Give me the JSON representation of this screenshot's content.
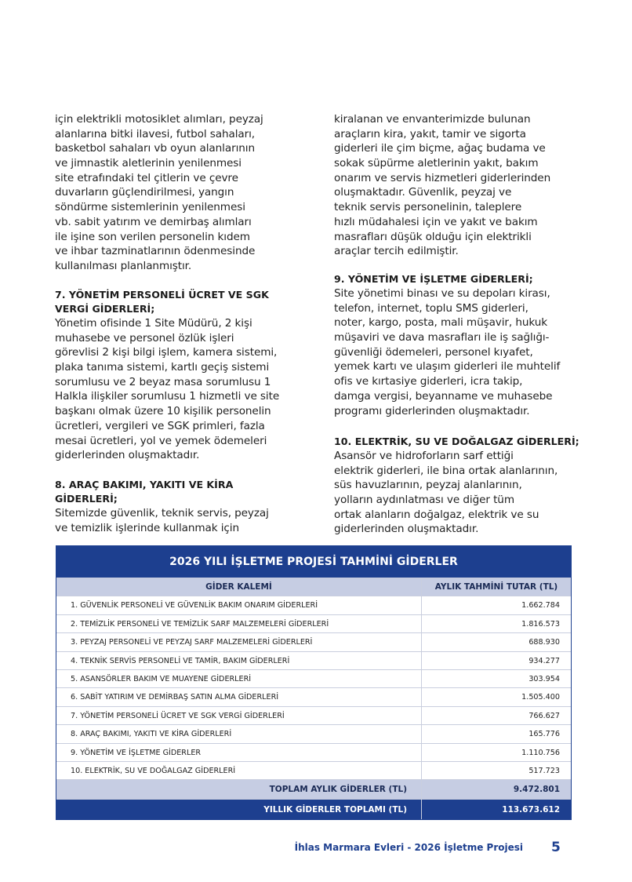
{
  "left": [
    {
      "lines": [
        "için elektrikli motosiklet alımları, peyzaj",
        "alanlarına bitki ilavesi, futbol sahaları,",
        "basketbol sahaları vb oyun alanlarının",
        "ve jimnastik aletlerinin yenilenmesi",
        "site etrafındaki tel çitlerin ve çevre",
        "duvarların güçlendirilmesi, yangın",
        "söndürme sistemlerinin yenilenmesi",
        "vb. sabit yatırım ve demirbaş alımları",
        "ile işine son verilen personelin kıdem",
        "ve ihbar tazminatlarının ödenmesinde",
        "kullanılması planlanmıştır."
      ]
    },
    {
      "heading": [
        "7. YÖNETİM PERSONELİ ÜCRET VE SGK",
        "VERGİ GİDERLERİ;"
      ],
      "lines": [
        "Yönetim ofisinde 1 Site Müdürü, 2 kişi",
        "muhasebe ve personel özlük işleri",
        "görevlisi 2 kişi bilgi işlem, kamera sistemi,",
        "plaka tanıma sistemi, kartlı geçiş sistemi",
        "sorumlusu ve 2 beyaz masa sorumlusu 1",
        "Halkla ilişkiler sorumlusu 1 hizmetli ve site",
        "başkanı olmak üzere 10 kişilik personelin",
        "ücretleri, vergileri ve SGK primleri, fazla",
        "mesai ücretleri, yol ve yemek ödemeleri",
        "giderlerinden oluşmaktadır."
      ]
    },
    {
      "heading": [
        "8. ARAÇ BAKIMI, YAKITI VE KİRA",
        "GİDERLERİ;"
      ],
      "lines": [
        "Sitemizde güvenlik, teknik servis, peyzaj",
        "ve temizlik işlerinde kullanmak için"
      ]
    }
  ],
  "right": [
    {
      "lines": [
        "kiralanan ve envanterimizde bulunan",
        "araçların kira, yakıt, tamir ve sigorta",
        "giderleri ile çim biçme, ağaç budama ve",
        "sokak süpürme aletlerinin yakıt, bakım",
        "onarım ve servis hizmetleri giderlerinden",
        "oluşmaktadır. Güvenlik, peyzaj ve",
        "teknik servis personelinin, taleplere",
        "hızlı müdahalesi için ve yakıt ve bakım",
        "masrafları düşük olduğu için elektrikli",
        "araçlar tercih edilmiştir."
      ]
    },
    {
      "heading": [
        "9. YÖNETİM VE İŞLETME GİDERLERİ;"
      ],
      "lines": [
        "Site yönetimi binası ve su depoları kirası,",
        "telefon, internet, toplu SMS giderleri,",
        "noter, kargo, posta, mali müşavir, hukuk",
        "müşaviri ve dava masrafları ile iş sağlığı-",
        "güvenliği ödemeleri, personel kıyafet,",
        "yemek kartı ve ulaşım giderleri ile muhtelif",
        "ofis ve kırtasiye giderleri, icra takip,",
        "damga vergisi, beyanname ve muhasebe",
        "programı giderlerinden oluşmaktadır."
      ]
    },
    {
      "heading": [
        "10. ELEKTRİK, SU VE DOĞALGAZ GİDERLERİ;"
      ],
      "lines": [
        "Asansör ve hidroforların sarf ettiği",
        "elektrik giderleri, ile bina ortak alanlarının,",
        "süs havuzlarının, peyzaj alanlarının,",
        "yolların aydınlatması ve diğer tüm",
        "ortak alanların doğalgaz, elektrik ve su",
        "giderlerinden oluşmaktadır."
      ]
    }
  ],
  "table": {
    "title": "2026 YILI İŞLETME PROJESİ TAHMİNİ GİDERLER",
    "headers": [
      "GİDER KALEMİ",
      "AYLIK TAHMİNİ TUTAR (TL)"
    ],
    "rows": [
      [
        "1. GÜVENLİK PERSONELİ VE GÜVENLİK BAKIM ONARIM GİDERLERİ",
        "1.662.784"
      ],
      [
        "2. TEMİZLİK PERSONELİ VE TEMİZLİK SARF MALZEMELERİ GİDERLERİ",
        "1.816.573"
      ],
      [
        "3. PEYZAJ PERSONELİ VE PEYZAJ SARF MALZEMELERİ GİDERLERİ",
        "688.930"
      ],
      [
        "4. TEKNİK SERVİS PERSONELİ VE TAMİR, BAKIM GİDERLERİ",
        "934.277"
      ],
      [
        "5. ASANSÖRLER BAKIM VE MUAYENE GİDERLERİ",
        "303.954"
      ],
      [
        "6. SABİT YATIRIM VE DEMİRBAŞ SATIN ALMA GİDERLERİ",
        "1.505.400"
      ],
      [
        "7. YÖNETİM PERSONELİ ÜCRET VE SGK VERGİ GİDERLERİ",
        "766.627"
      ],
      [
        "8. ARAÇ BAKIMI, YAKITI VE KİRA GİDERLERİ",
        "165.776"
      ],
      [
        "9. YÖNETİM VE İŞLETME GİDERLER",
        "1.110.756"
      ],
      [
        "10. ELEKTRİK, SU VE DOĞALGAZ GİDERLERİ",
        "517.723"
      ]
    ],
    "total": [
      "TOPLAM AYLIK GİDERLER (TL)",
      "9.472.801"
    ],
    "yearly": [
      "YILLIK GİDERLER TOPLAMI (TL)",
      "113.673.612"
    ]
  },
  "footer": {
    "text": "İhlas Marmara Evleri - 2026 İşletme Projesi",
    "page": "5"
  }
}
